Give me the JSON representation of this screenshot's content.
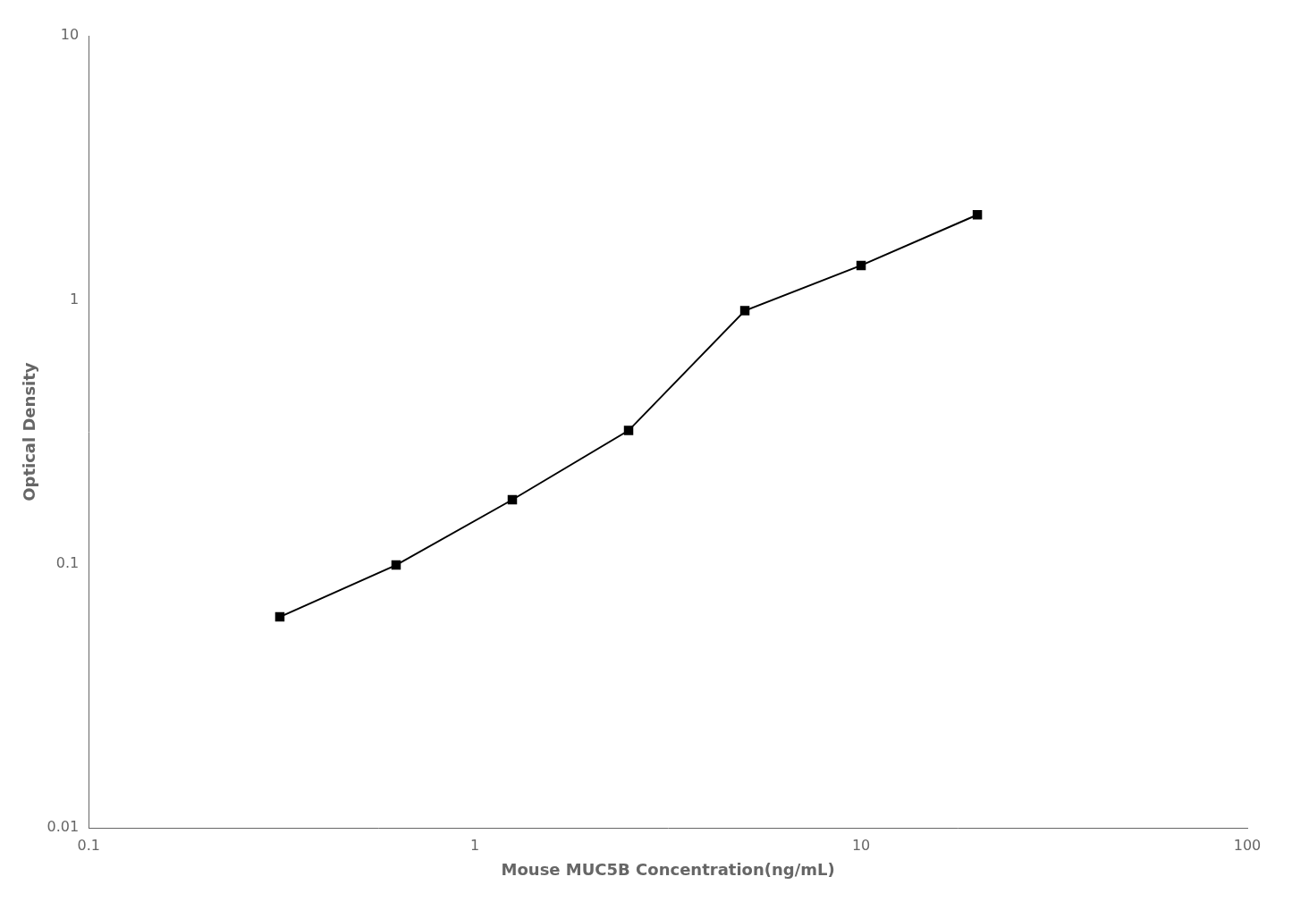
{
  "chart_data": {
    "type": "line",
    "x": [
      0.3125,
      0.625,
      1.25,
      2.5,
      5.0,
      10.0,
      20.0
    ],
    "values": [
      0.063,
      0.099,
      0.175,
      0.32,
      0.91,
      1.35,
      2.1
    ],
    "xlabel": "Mouse MUC5B Concentration(ng/mL)",
    "ylabel": "Optical Density",
    "xlim": [
      0.1,
      100
    ],
    "ylim": [
      0.01,
      10
    ],
    "xticks": [
      0.1,
      1,
      10,
      100
    ],
    "yticks": [
      0.01,
      0.1,
      1,
      10
    ],
    "log": true,
    "grid": false,
    "color": "#000000",
    "marker": "square"
  }
}
